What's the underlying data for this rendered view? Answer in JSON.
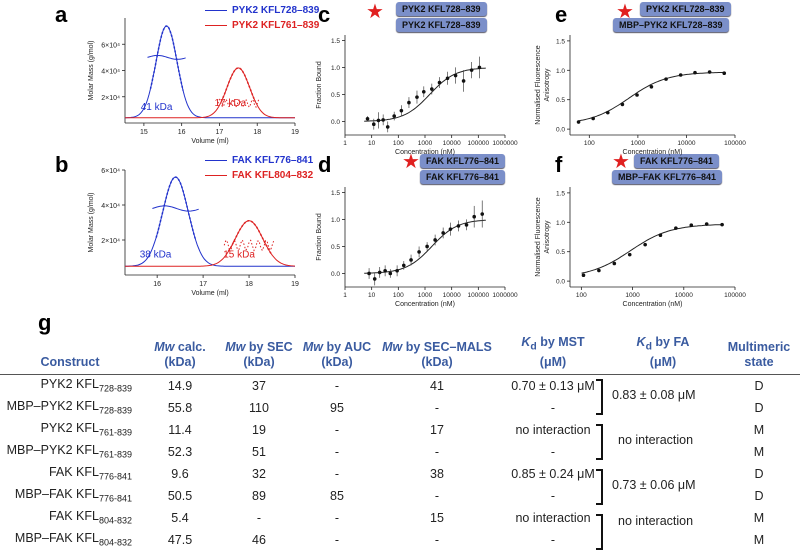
{
  "panels": {
    "a": {
      "letter": "a",
      "legend": [
        "PYK2 KFL728–839",
        "PYK2 KFL761–839"
      ],
      "ylabel": "Molar Mass (g/mol)",
      "xlabel": "Volume (ml)",
      "yticks": [
        "2×10⁴",
        "4×10⁴",
        "6×10⁴"
      ],
      "xticks": [
        "15",
        "16",
        "17",
        "18",
        "19"
      ],
      "peak_labels": [
        "41 kDa",
        "17 kDa"
      ]
    },
    "b": {
      "letter": "b",
      "legend": [
        "FAK KFL776–841",
        "FAK KFL804–832"
      ],
      "ylabel": "Molar Mass (g/mol)",
      "xlabel": "Volume (ml)",
      "yticks": [
        "2×10⁴",
        "4×10⁴",
        "6×10⁴"
      ],
      "xticks": [
        "16",
        "17",
        "18",
        "19"
      ],
      "peak_labels": [
        "38 kDa",
        "15 kDa"
      ]
    },
    "c": {
      "letter": "c",
      "tags": [
        "PYK2 KFL728–839",
        "PYK2 KFL728–839"
      ],
      "ylabel": "Fraction Bound",
      "xlabel": "Concentration (nM)",
      "yticks": [
        "0.0",
        "0.5",
        "1.0",
        "1.5"
      ],
      "xticks": [
        "1",
        "10",
        "100",
        "1000",
        "10000",
        "100000",
        "1000000"
      ]
    },
    "d": {
      "letter": "d",
      "tags": [
        "FAK KFL776–841",
        "FAK KFL776–841"
      ],
      "ylabel": "Fraction Bound",
      "xlabel": "Concentration (nM)",
      "yticks": [
        "0.0",
        "0.5",
        "1.0",
        "1.5"
      ],
      "xticks": [
        "1",
        "10",
        "100",
        "1000",
        "10000",
        "100000",
        "1000000"
      ]
    },
    "e": {
      "letter": "e",
      "tags": [
        "PYK2 KFL728–839",
        "MBP–PYK2 KFL728–839"
      ],
      "ylabel": "Normalised Fluorescence Anisotropy",
      "xlabel": "Concentration (nM)",
      "yticks": [
        "0.0",
        "0.5",
        "1.0",
        "1.5"
      ],
      "xticks": [
        "100",
        "1000",
        "10000",
        "100000"
      ]
    },
    "f": {
      "letter": "f",
      "tags": [
        "FAK KFL776–841",
        "MBP–FAK KFL776–841"
      ],
      "ylabel": "Normalised Fluorescence Anisotropy",
      "xlabel": "Concentration (nM)",
      "yticks": [
        "0.0",
        "0.5",
        "1.0",
        "1.5"
      ],
      "xticks": [
        "100",
        "1000",
        "10000",
        "100000"
      ]
    }
  },
  "chart_data": [
    {
      "type": "line",
      "panel": "a",
      "xlabel": "Volume (ml)",
      "ylabel": "Molar Mass (g/mol)",
      "xlim": [
        14.5,
        19
      ],
      "ylim": [
        0,
        80000
      ],
      "series": [
        {
          "name": "PYK2 KFL728–839",
          "peak_x": 15.6,
          "peak_y": 74000,
          "mass_label": "41 kDa"
        },
        {
          "name": "PYK2 KFL761–839",
          "peak_x": 17.5,
          "peak_y": 42000,
          "mass_label": "17 kDa"
        }
      ]
    },
    {
      "type": "line",
      "panel": "b",
      "xlabel": "Volume (ml)",
      "ylabel": "Molar Mass (g/mol)",
      "xlim": [
        15.3,
        19
      ],
      "ylim": [
        0,
        60000
      ],
      "series": [
        {
          "name": "FAK KFL776–841",
          "peak_x": 16.4,
          "peak_y": 56000,
          "mass_label": "38 kDa"
        },
        {
          "name": "FAK KFL804–832",
          "peak_x": 18.0,
          "peak_y": 31000,
          "mass_label": "15 kDa"
        }
      ]
    },
    {
      "type": "scatter",
      "panel": "c",
      "xlabel": "Concentration (nM)",
      "ylabel": "Fraction Bound",
      "xscale": "log",
      "xlim": [
        1,
        1000000
      ],
      "ylim": [
        -0.25,
        1.6
      ],
      "x": [
        7,
        12,
        18,
        27,
        40,
        70,
        130,
        250,
        500,
        900,
        1800,
        3500,
        7000,
        14000,
        28000,
        56000,
        110000
      ],
      "y": [
        0.05,
        -0.05,
        0.02,
        0.03,
        -0.1,
        0.1,
        0.2,
        0.35,
        0.45,
        0.55,
        0.6,
        0.72,
        0.8,
        0.85,
        0.75,
        0.95,
        1.0
      ],
      "err": [
        0.05,
        0.1,
        0.15,
        0.1,
        0.1,
        0.08,
        0.1,
        0.1,
        0.12,
        0.1,
        0.1,
        0.1,
        0.12,
        0.15,
        0.2,
        0.15,
        0.2
      ]
    },
    {
      "type": "scatter",
      "panel": "d",
      "xlabel": "Concentration (nM)",
      "ylabel": "Fraction Bound",
      "xscale": "log",
      "xlim": [
        1,
        1000000
      ],
      "ylim": [
        -0.25,
        1.6
      ],
      "x": [
        8,
        13,
        20,
        32,
        50,
        90,
        160,
        300,
        600,
        1200,
        2400,
        4800,
        9000,
        18000,
        36000,
        70000,
        140000
      ],
      "y": [
        0.0,
        -0.1,
        0.02,
        0.05,
        0.0,
        0.05,
        0.15,
        0.25,
        0.4,
        0.5,
        0.62,
        0.75,
        0.82,
        0.88,
        0.9,
        1.05,
        1.1
      ],
      "err": [
        0.1,
        0.12,
        0.1,
        0.1,
        0.08,
        0.1,
        0.08,
        0.1,
        0.1,
        0.08,
        0.1,
        0.1,
        0.12,
        0.1,
        0.1,
        0.2,
        0.25
      ]
    },
    {
      "type": "scatter",
      "panel": "e",
      "xlabel": "Concentration (nM)",
      "ylabel": "Normalised Fluorescence Anisotropy",
      "xscale": "log",
      "xlim": [
        40,
        100000
      ],
      "ylim": [
        -0.1,
        1.6
      ],
      "x": [
        60,
        120,
        240,
        480,
        960,
        1900,
        3800,
        7600,
        15000,
        30000,
        60000
      ],
      "y": [
        0.12,
        0.18,
        0.28,
        0.42,
        0.58,
        0.72,
        0.85,
        0.92,
        0.96,
        0.97,
        0.95
      ]
    },
    {
      "type": "scatter",
      "panel": "f",
      "xlabel": "Concentration (nM)",
      "ylabel": "Normalised Fluorescence Anisotropy",
      "xscale": "log",
      "xlim": [
        60,
        100000
      ],
      "ylim": [
        -0.1,
        1.6
      ],
      "x": [
        110,
        220,
        440,
        880,
        1760,
        3500,
        7000,
        14000,
        28000,
        56000
      ],
      "y": [
        0.1,
        0.18,
        0.3,
        0.45,
        0.62,
        0.78,
        0.9,
        0.95,
        0.97,
        0.96
      ]
    }
  ],
  "table": {
    "letter": "g",
    "headers": [
      {
        "a": "Construct",
        "b": ""
      },
      {
        "a": "Mw calc.",
        "b": "(kDa)"
      },
      {
        "a": "Mw by SEC",
        "b": "(kDa)"
      },
      {
        "a": "Mw by AUC",
        "b": "(kDa)"
      },
      {
        "a": "Mw by SEC–MALS",
        "b": "(kDa)"
      },
      {
        "a": "Kd by MST",
        "b": "(μM)"
      },
      {
        "a": "Kd by FA",
        "b": "(μM)"
      },
      {
        "a": "Multimeric",
        "b": "state"
      }
    ],
    "rows": [
      {
        "name": "PYK2 KFL",
        "sub": "728-839",
        "calc": "14.9",
        "sec": "37",
        "auc": "-",
        "mals": "41",
        "mst": "0.70 ± 0.13 μM",
        "state": "D"
      },
      {
        "name": "MBP–PYK2 KFL",
        "sub": "728-839",
        "calc": "55.8",
        "sec": "110",
        "auc": "95",
        "mals": "-",
        "mst": "-",
        "state": "D"
      },
      {
        "name": "PYK2 KFL",
        "sub": "761-839",
        "calc": "11.4",
        "sec": "19",
        "auc": "-",
        "mals": "17",
        "mst": "no interaction",
        "state": "M"
      },
      {
        "name": "MBP–PYK2 KFL",
        "sub": "761-839",
        "calc": "52.3",
        "sec": "51",
        "auc": "-",
        "mals": "-",
        "mst": "-",
        "state": "M"
      },
      {
        "name": "FAK KFL",
        "sub": "776-841",
        "calc": "9.6",
        "sec": "32",
        "auc": "-",
        "mals": "38",
        "mst": "0.85 ± 0.24 μM",
        "state": "D"
      },
      {
        "name": "MBP–FAK KFL",
        "sub": "776-841",
        "calc": "50.5",
        "sec": "89",
        "auc": "85",
        "mals": "-",
        "mst": "-",
        "state": "D"
      },
      {
        "name": "FAK KFL",
        "sub": "804-832",
        "calc": "5.4",
        "sec": "-",
        "auc": "-",
        "mals": "15",
        "mst": "no interaction",
        "state": "M"
      },
      {
        "name": "MBP–FAK KFL",
        "sub": "804-832",
        "calc": "47.5",
        "sec": "46",
        "auc": "-",
        "mals": "-",
        "mst": "-",
        "state": "M"
      }
    ],
    "fa_values": [
      "0.83 ± 0.08 μM",
      "no interaction",
      "0.73 ± 0.06 μM",
      "no interaction"
    ]
  },
  "colors": {
    "blue": "#2233cc",
    "red": "#dd2222",
    "tag": "#7b8fc9",
    "header": "#3a5ba0"
  }
}
